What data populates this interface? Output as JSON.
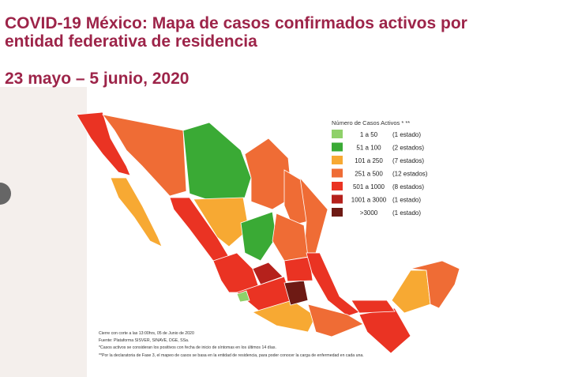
{
  "header": {
    "title_line1": "COVID-19 México: Mapa de casos confirmados activos por",
    "title_line2": "entidad federativa de residencia",
    "date": "23 mayo – 5 junio, 2020"
  },
  "legend": {
    "title": "Número de Casos Activos * **",
    "items": [
      {
        "label": "1 a 50",
        "count": "(1 estado)",
        "color": "#8fd16a"
      },
      {
        "label": "51 a 100",
        "count": "(2 estados)",
        "color": "#3aaa35"
      },
      {
        "label": "101 a 250",
        "count": "(7 estados)",
        "color": "#f7a933"
      },
      {
        "label": "251 a 500",
        "count": "(12 estados)",
        "color": "#ef6c35"
      },
      {
        "label": "501 a 1000",
        "count": "(8 estados)",
        "color": "#ea3323"
      },
      {
        "label": "1001 a 3000",
        "count": "(1 estado)",
        "color": "#b5211c"
      },
      {
        "label": ">3000",
        "count": "(1 estado)",
        "color": "#6e1a14"
      }
    ]
  },
  "notes": [
    "Cierre con corte a las 13:00hrs, 05 de Junio de 2020",
    "Fuente: Plataforma SISVER, SINAVE, DGE, SSa.",
    "*Casos activos se consideran los positivos con fecha de inicio de síntomas en los últimos 14 días.",
    "**Por la declaratoria de Fase 3, el mapeo de casos se basa en la entidad de residencia, para poder conocer la carga de enfermedad en cada una."
  ]
}
